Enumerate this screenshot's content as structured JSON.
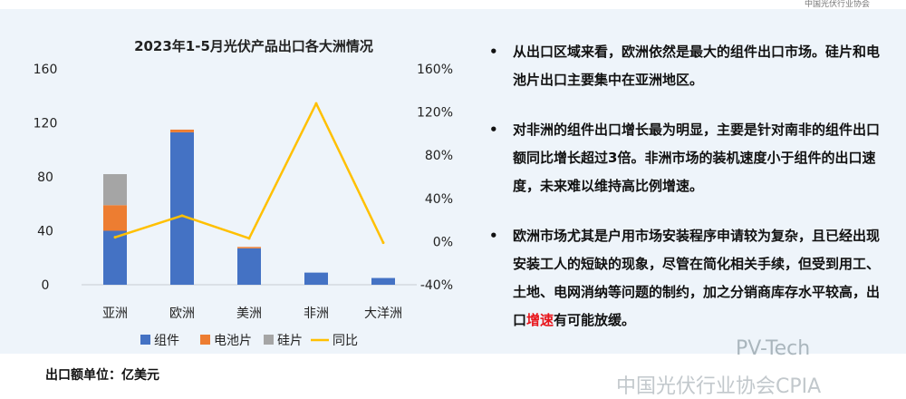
{
  "top_tag": "中国光伏行业协会",
  "chart_data": {
    "type": "bar",
    "title": "2023年1-5月光伏产品出口各大洲情况",
    "categories": [
      "亚洲",
      "欧洲",
      "美洲",
      "非洲",
      "大洋洲"
    ],
    "series": [
      {
        "name": "组件",
        "values": [
          40,
          113,
          27,
          9,
          5
        ],
        "color": "#4472c4"
      },
      {
        "name": "电池片",
        "values": [
          19,
          2,
          1,
          0,
          0
        ],
        "color": "#ed7d31"
      },
      {
        "name": "硅片",
        "values": [
          23,
          0,
          0,
          0,
          0
        ],
        "color": "#a5a5a5"
      }
    ],
    "line_series": {
      "name": "同比",
      "values": [
        4,
        24,
        3,
        128,
        -1
      ],
      "color": "#ffc000"
    },
    "ylim": [
      0,
      160
    ],
    "y_ticks": [
      "0",
      "40",
      "80",
      "120",
      "160"
    ],
    "y2lim": [
      -40,
      160
    ],
    "y2_ticks": [
      "-40%",
      "0%",
      "40%",
      "80%",
      "120%",
      "160%"
    ],
    "stacked": true,
    "legend_position": "bottom"
  },
  "bullets": [
    {
      "text": "从出口区域来看，欧洲依然是最大的组件出口市场。硅片和电池片出口主要集中在亚洲地区。"
    },
    {
      "text": "对非洲的组件出口增长最为明显，主要是针对南非的组件出口额同比增长超过3倍。非洲市场的装机速度小于组件的出口速度，未来难以维持高比例增速。"
    },
    {
      "before": "欧洲市场尤其是户用市场安装程序申请较为复杂，且已经出现安装工人的短缺的现象，尽管在简化相关手续，但受到用工、土地、电网消纳等问题的制约，加之分销商库存水平较高，出口",
      "highlight": "增速",
      "after": "有可能放缓。"
    }
  ],
  "bullet_marker": "•",
  "unit_label": "出口额单位：亿美元",
  "watermark_1": "PV-Tech",
  "watermark_2": "中国光伏行业协会CPIA"
}
